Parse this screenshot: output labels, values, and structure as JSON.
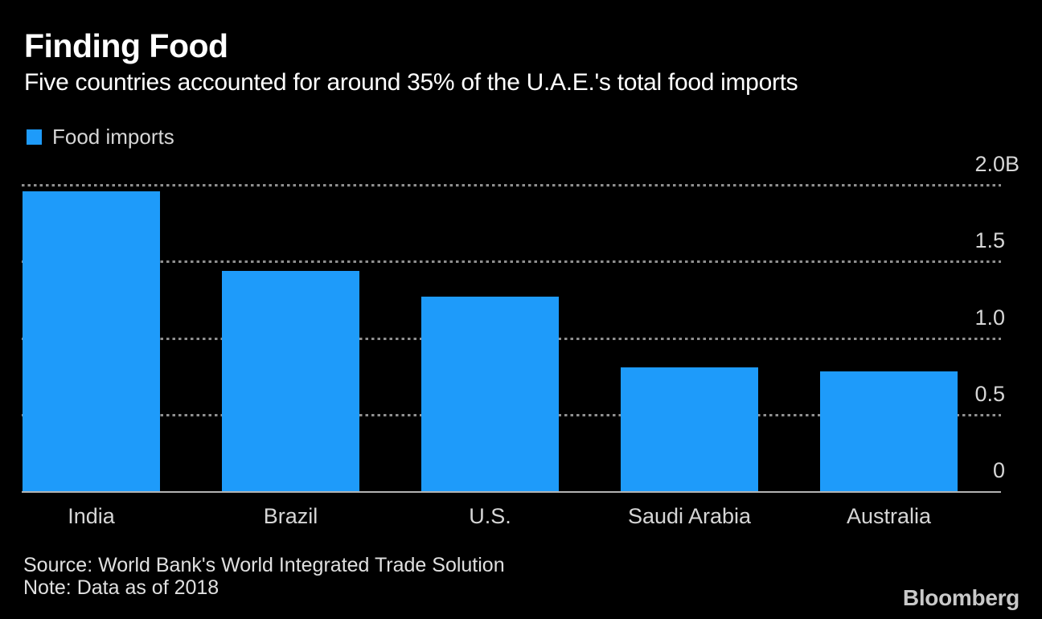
{
  "header": {
    "title": "Finding Food",
    "subtitle": "Five countries accounted for around 35% of the U.A.E.'s total food imports"
  },
  "legend": {
    "label": "Food imports"
  },
  "chart_data": {
    "type": "bar",
    "title": "Finding Food",
    "subtitle": "Five countries accounted for around 35% of the U.A.E.'s total food imports",
    "categories": [
      "India",
      "Brazil",
      "U.S.",
      "Saudi Arabia",
      "Australia"
    ],
    "series": [
      {
        "name": "Food imports",
        "values": [
          1.96,
          1.44,
          1.27,
          0.81,
          0.78
        ]
      }
    ],
    "unit": "B (billions of dollars)",
    "xlabel": "",
    "ylabel": "",
    "ylim": [
      0,
      2.0
    ],
    "yticks": [
      {
        "value": 2.0,
        "label": "2.0B"
      },
      {
        "value": 1.5,
        "label": "1.5"
      },
      {
        "value": 1.0,
        "label": "1.0"
      },
      {
        "value": 0.5,
        "label": "0.5"
      },
      {
        "value": 0,
        "label": "0"
      }
    ],
    "grid": "horizontal-dotted",
    "legend_position": "top-left",
    "bar_color": "#1e9bfa"
  },
  "footer": {
    "source": "Source: World Bank's World Integrated Trade Solution",
    "note": "Note: Data as of 2018",
    "brand": "Bloomberg"
  },
  "colors": {
    "background": "#000000",
    "bar": "#1e9bfa",
    "title_text": "#ffffff",
    "axis_text": "#d6d6d6",
    "gridline": "#8f8f8f",
    "baseline": "#b3b3b3",
    "footer_text": "#e0e0e0",
    "brand_text": "#c9c9c9"
  }
}
